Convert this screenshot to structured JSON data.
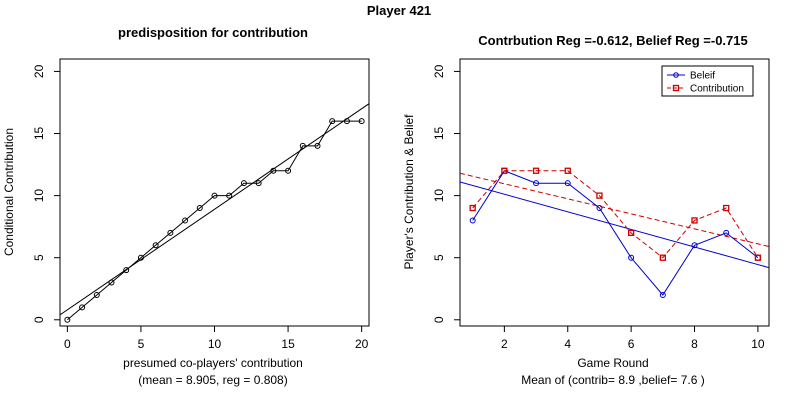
{
  "figure_title": "Player 421",
  "chart_data": [
    {
      "type": "line",
      "title": "predisposition for contribution",
      "xlabel": "presumed co-players' contribution",
      "xlabel2": "(mean = 8.905, reg = 0.808)",
      "ylabel": "Conditional Contribution",
      "xlim": [
        -0.5,
        20.5
      ],
      "ylim": [
        -0.5,
        21
      ],
      "xticks": [
        0,
        5,
        10,
        15,
        20
      ],
      "yticks": [
        0,
        5,
        10,
        15,
        20
      ],
      "grid": false,
      "series": [
        {
          "x": [
            0,
            1,
            2,
            3,
            4,
            5,
            6,
            7,
            8,
            9,
            10,
            11,
            12,
            13,
            14,
            15,
            16,
            17,
            18,
            19,
            20
          ],
          "values": [
            0,
            1,
            2,
            3,
            4,
            5,
            6,
            7,
            8,
            9,
            10,
            10,
            11,
            11,
            12,
            12,
            14,
            14,
            16,
            16,
            16
          ],
          "color": "#000000",
          "marker": "circle"
        }
      ],
      "regression_line": {
        "x": [
          -0.5,
          20.5
        ],
        "y": [
          0.4,
          17.4
        ],
        "color": "#000000"
      }
    },
    {
      "type": "line",
      "title": "Contrbution Reg =-0.612, Belief Reg =-0.715",
      "xlabel": "Game Round",
      "xlabel2": "Mean of (contrib= 8.9  ,belief= 7.6 )",
      "ylabel": "Player's Contribution & Belief",
      "xlim": [
        0.6,
        10.35
      ],
      "ylim": [
        -0.5,
        21
      ],
      "xticks": [
        2,
        4,
        6,
        8,
        10
      ],
      "yticks": [
        0,
        5,
        10,
        15,
        20
      ],
      "grid": false,
      "legend_position": "top-right",
      "x": [
        1,
        2,
        3,
        4,
        5,
        6,
        7,
        8,
        9,
        10
      ],
      "series": [
        {
          "name": "Beleif",
          "values": [
            8,
            12,
            11,
            11,
            9,
            5,
            2,
            6,
            7,
            5
          ],
          "color": "#0000cc",
          "marker": "circle",
          "dash": "solid"
        },
        {
          "name": "Contribution",
          "values": [
            9,
            12,
            12,
            12,
            10,
            7,
            5,
            8,
            9,
            5
          ],
          "color": "#cc0000",
          "marker": "square",
          "dash": "dashed"
        }
      ],
      "regression_lines": [
        {
          "series": "Beleif",
          "x": [
            0.6,
            10.35
          ],
          "y": [
            11.1,
            4.2
          ],
          "color": "#0000cc",
          "dash": "solid"
        },
        {
          "series": "Contribution",
          "x": [
            0.6,
            10.35
          ],
          "y": [
            11.8,
            5.9
          ],
          "color": "#cc0000",
          "dash": "dashed"
        }
      ]
    }
  ]
}
